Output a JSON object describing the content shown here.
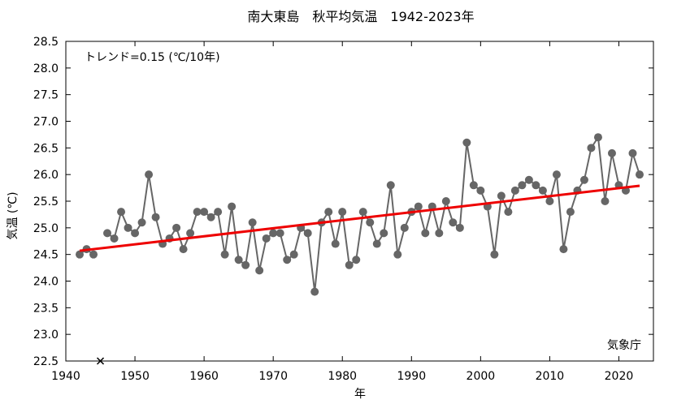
{
  "chart_data": {
    "type": "scatter",
    "title": "南大東島　秋平均気温　1942-2023年",
    "xlabel": "年",
    "ylabel": "気温 (℃)",
    "trend_label": "トレンド=0.15 (℃/10年)",
    "source_label": "気象庁",
    "xlim": [
      1940,
      2025
    ],
    "ylim": [
      22.5,
      28.5
    ],
    "xticks": [
      1940,
      1950,
      1960,
      1970,
      1980,
      1990,
      2000,
      2010,
      2020
    ],
    "yticks": [
      22.5,
      23.0,
      23.5,
      24.0,
      24.5,
      25.0,
      25.5,
      26.0,
      26.5,
      27.0,
      27.5,
      28.0,
      28.5
    ],
    "x_tick_labels": [
      "1940",
      "1950",
      "1960",
      "1970",
      "1980",
      "1990",
      "2000",
      "2010",
      "2020"
    ],
    "y_tick_labels": [
      "22.5",
      "23.0",
      "23.5",
      "24.0",
      "24.5",
      "25.0",
      "25.5",
      "26.0",
      "26.5",
      "27.0",
      "27.5",
      "28.0",
      "28.5"
    ],
    "grid": false,
    "series": [
      {
        "x": [
          1942,
          1943,
          1944,
          1946,
          1947,
          1948,
          1949,
          1950,
          1951,
          1952,
          1953,
          1954,
          1955,
          1956,
          1957,
          1958,
          1959,
          1960,
          1961,
          1962,
          1963,
          1964,
          1965,
          1966,
          1967,
          1968,
          1969,
          1970,
          1971,
          1972,
          1973,
          1974,
          1975,
          1976,
          1977,
          1978,
          1979,
          1980,
          1981,
          1982,
          1983,
          1984,
          1985,
          1986,
          1987,
          1988,
          1989,
          1990,
          1991,
          1992,
          1993,
          1994,
          1995,
          1996,
          1997,
          1998,
          1999,
          2000,
          2001,
          2002,
          2003,
          2004,
          2005,
          2006,
          2007,
          2008,
          2009,
          2010,
          2011,
          2012,
          2013,
          2014,
          2015,
          2016,
          2017,
          2018,
          2019,
          2020,
          2021,
          2022,
          2023
        ],
        "y": [
          24.5,
          24.6,
          24.5,
          24.9,
          24.8,
          25.3,
          25.0,
          24.9,
          25.1,
          26.0,
          25.2,
          24.7,
          24.8,
          25.0,
          24.6,
          24.9,
          25.3,
          25.3,
          25.2,
          25.3,
          24.5,
          25.4,
          24.4,
          24.3,
          25.1,
          24.2,
          24.8,
          24.9,
          24.9,
          24.4,
          24.5,
          25.0,
          24.9,
          23.8,
          25.1,
          25.3,
          24.7,
          25.3,
          24.3,
          24.4,
          25.3,
          25.1,
          24.7,
          24.9,
          25.8,
          24.5,
          25.0,
          25.3,
          25.4,
          24.9,
          25.4,
          24.9,
          25.5,
          25.1,
          25.0,
          26.6,
          25.8,
          25.7,
          25.4,
          24.5,
          25.6,
          25.3,
          25.7,
          25.8,
          25.9,
          25.8,
          25.7,
          25.5,
          26.0,
          24.6,
          25.3,
          25.7,
          25.9,
          26.5,
          26.7,
          25.5,
          26.4,
          25.8,
          25.7,
          26.4,
          26.0
        ],
        "color": "#666666"
      }
    ],
    "missing_marker": {
      "x": 1945,
      "y": 22.5,
      "symbol": "×"
    },
    "trend": {
      "x": [
        1942,
        2023
      ],
      "y": [
        24.57,
        25.79
      ],
      "color": "#ee0000"
    }
  }
}
